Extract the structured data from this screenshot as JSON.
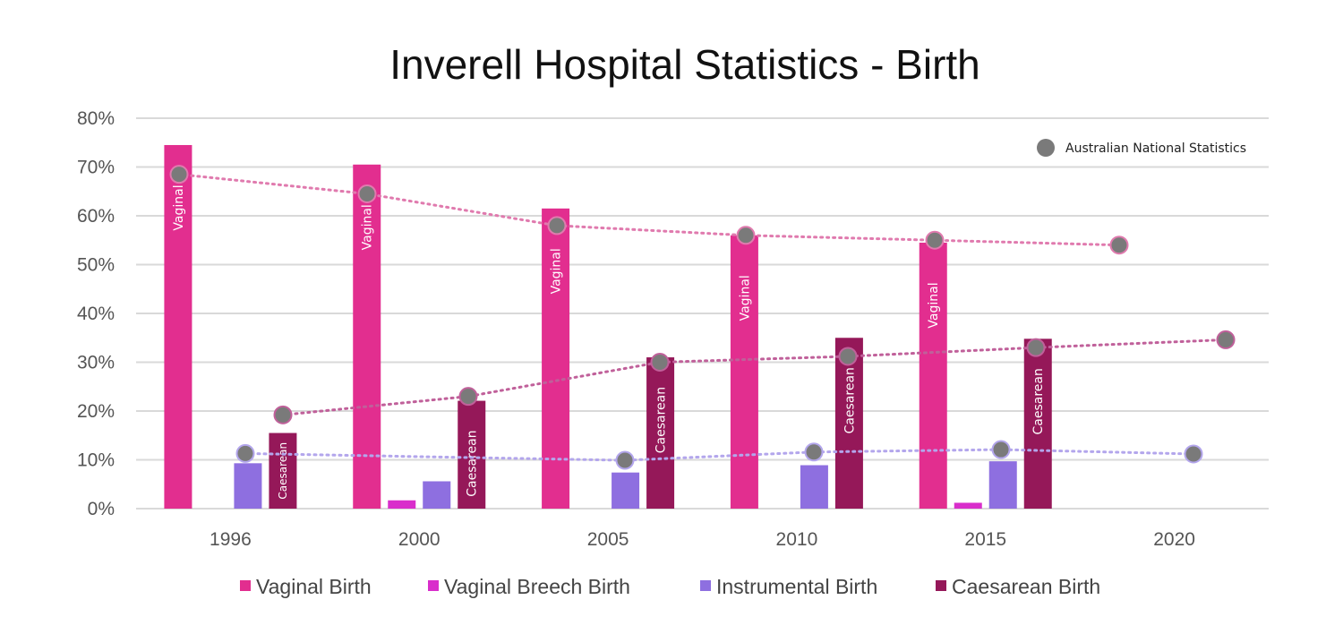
{
  "chart_data": {
    "type": "bar",
    "title": "Inverell Hospital Statistics - Birth",
    "categories": [
      "1996",
      "2000",
      "2005",
      "2010",
      "2015",
      "2020"
    ],
    "y_ticks": [
      "0%",
      "10%",
      "20%",
      "30%",
      "40%",
      "50%",
      "60%",
      "70%",
      "80%"
    ],
    "ylim": [
      0,
      80
    ],
    "grid": true,
    "series": [
      {
        "name": "Vaginal Birth",
        "color": "#e22e8f",
        "values": [
          74.5,
          70.5,
          61.5,
          56,
          54.5,
          null
        ],
        "bar_label": "Vaginal"
      },
      {
        "name": "Vaginal Breech Birth",
        "color": "#d92ecb",
        "values": [
          0,
          1.7,
          0,
          0,
          1.2,
          null
        ],
        "bar_label": ""
      },
      {
        "name": "Instrumental Birth",
        "color": "#8e6fe0",
        "values": [
          9.3,
          5.6,
          7.4,
          8.9,
          9.7,
          null
        ],
        "bar_label": ""
      },
      {
        "name": "Caesarean Birth",
        "color": "#951859",
        "values": [
          15.5,
          22.1,
          31,
          35,
          34.8,
          null
        ],
        "bar_label": "Caesarean"
      }
    ],
    "national_statistics": {
      "legend_label": "Australian National Statistics",
      "marker_color": "#7a7a7a",
      "series": [
        {
          "name": "Vaginal (national)",
          "trend_color": "#e07aae",
          "values": [
            68.5,
            64.5,
            58,
            56,
            55,
            54
          ]
        },
        {
          "name": "Caesarean (national)",
          "trend_color": "#c0609a",
          "values": [
            19.2,
            23,
            30,
            31.2,
            33,
            34.6
          ]
        },
        {
          "name": "Instrumental (national)",
          "trend_color": "#b3a6ec",
          "values": [
            11.3,
            null,
            9.9,
            11.6,
            12.1,
            11.2
          ]
        }
      ]
    },
    "legend": [
      "Vaginal Birth",
      "Vaginal Breech Birth",
      "Instrumental Birth",
      "Caesarean Birth"
    ]
  }
}
